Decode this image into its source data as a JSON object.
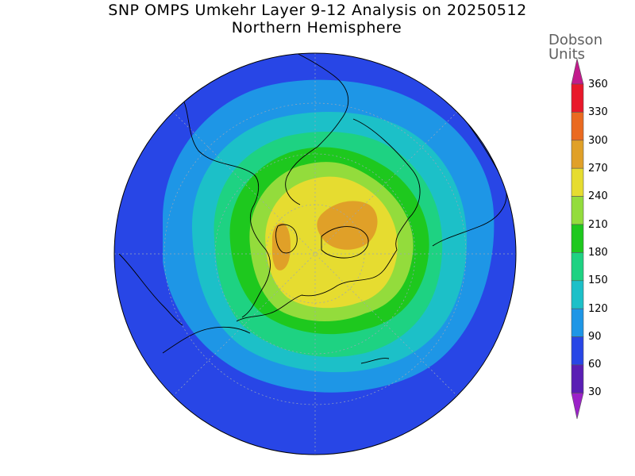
{
  "title": "SNP OMPS Umkehr Layer 9-12 Analysis on 20250512",
  "subtitle": "Northern Hemisphere",
  "colorbar": {
    "unit_line1": "Dobson",
    "unit_line2": "Units",
    "ticks": [
      "360",
      "330",
      "300",
      "270",
      "240",
      "210",
      "180",
      "150",
      "120",
      "90",
      "60",
      "30"
    ],
    "colors": [
      "#c21b8c",
      "#e8182a",
      "#ea6a20",
      "#e0a028",
      "#e6dc30",
      "#93dc3c",
      "#1ec81e",
      "#1ed282",
      "#1cc0c8",
      "#1e96e6",
      "#2846e6",
      "#5a1eb4",
      "#9b22c8"
    ]
  },
  "map": {
    "projection": "north-polar-stereographic",
    "contour_levels_du": [
      90,
      120,
      150,
      180,
      210,
      240,
      270
    ],
    "field_colors": {
      "60_90": "#2846e6",
      "90_120": "#1e96e6",
      "120_150": "#1cc0c8",
      "150_180": "#1ed282",
      "180_210": "#1ec81e",
      "210_240": "#93dc3c",
      "240_270": "#e6dc30",
      "270_300": "#e0a028"
    }
  }
}
